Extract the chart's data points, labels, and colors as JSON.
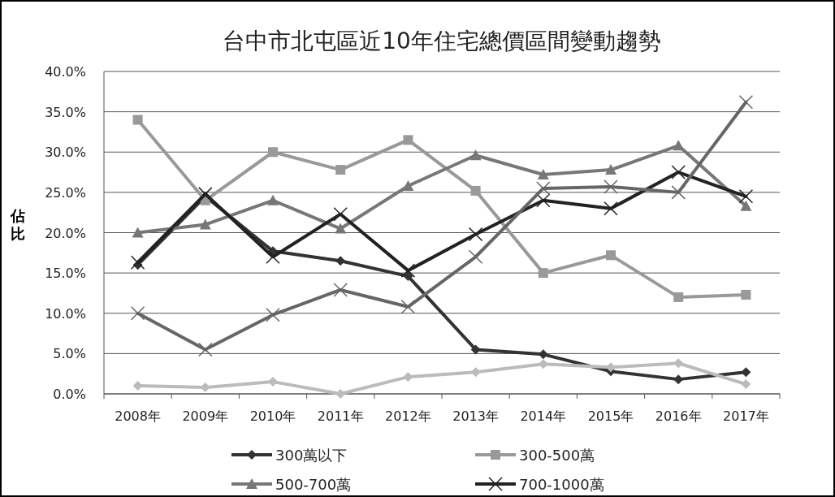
{
  "chart_data": {
    "type": "line",
    "title": "台中市北屯區近10年住宅總價區間變動趨勢",
    "ylabel": "佔比",
    "categories": [
      "2008年",
      "2009年",
      "2010年",
      "2011年",
      "2012年",
      "2013年",
      "2014年",
      "2015年",
      "2016年",
      "2017年"
    ],
    "ylim": [
      0,
      40
    ],
    "yticks": [
      {
        "value": 0,
        "label": "0.0%"
      },
      {
        "value": 5,
        "label": "5.0%"
      },
      {
        "value": 10,
        "label": "10.0%"
      },
      {
        "value": 15,
        "label": "15.0%"
      },
      {
        "value": 20,
        "label": "20.0%"
      },
      {
        "value": 25,
        "label": "25.0%"
      },
      {
        "value": 30,
        "label": "30.0%"
      },
      {
        "value": 35,
        "label": "35.0%"
      },
      {
        "value": 40,
        "label": "40.0%"
      }
    ],
    "grid": "y",
    "legend": "bottom",
    "line_style": "solid",
    "series": [
      {
        "name": "300萬以下",
        "color": "#333333",
        "marker": "diamond",
        "values": [
          16.0,
          24.5,
          17.7,
          16.5,
          14.6,
          5.5,
          4.9,
          2.8,
          1.8,
          2.7
        ]
      },
      {
        "name": "300-500萬",
        "color": "#999999",
        "marker": "square",
        "values": [
          34.0,
          24.0,
          30.0,
          27.8,
          31.5,
          25.2,
          15.0,
          17.2,
          12.0,
          12.3
        ]
      },
      {
        "name": "500-700萬",
        "color": "#777777",
        "marker": "triangle",
        "values": [
          20.0,
          21.0,
          24.0,
          20.5,
          25.8,
          29.6,
          27.2,
          27.8,
          30.8,
          23.3
        ]
      },
      {
        "name": "700-1000萬",
        "color": "#222222",
        "marker": "cross",
        "values": [
          16.3,
          24.8,
          17.0,
          22.3,
          15.3,
          19.8,
          24.0,
          23.0,
          27.5,
          24.5
        ]
      },
      {
        "color": "#666666",
        "marker": "cross",
        "values": [
          10.0,
          5.5,
          9.8,
          12.9,
          10.8,
          17.0,
          25.5,
          25.7,
          25.0,
          36.2
        ]
      },
      {
        "color": "#bbbbbb",
        "marker": "diamond",
        "values": [
          1.0,
          0.8,
          1.5,
          0.0,
          2.1,
          2.7,
          3.7,
          3.3,
          3.8,
          1.2
        ]
      }
    ]
  }
}
